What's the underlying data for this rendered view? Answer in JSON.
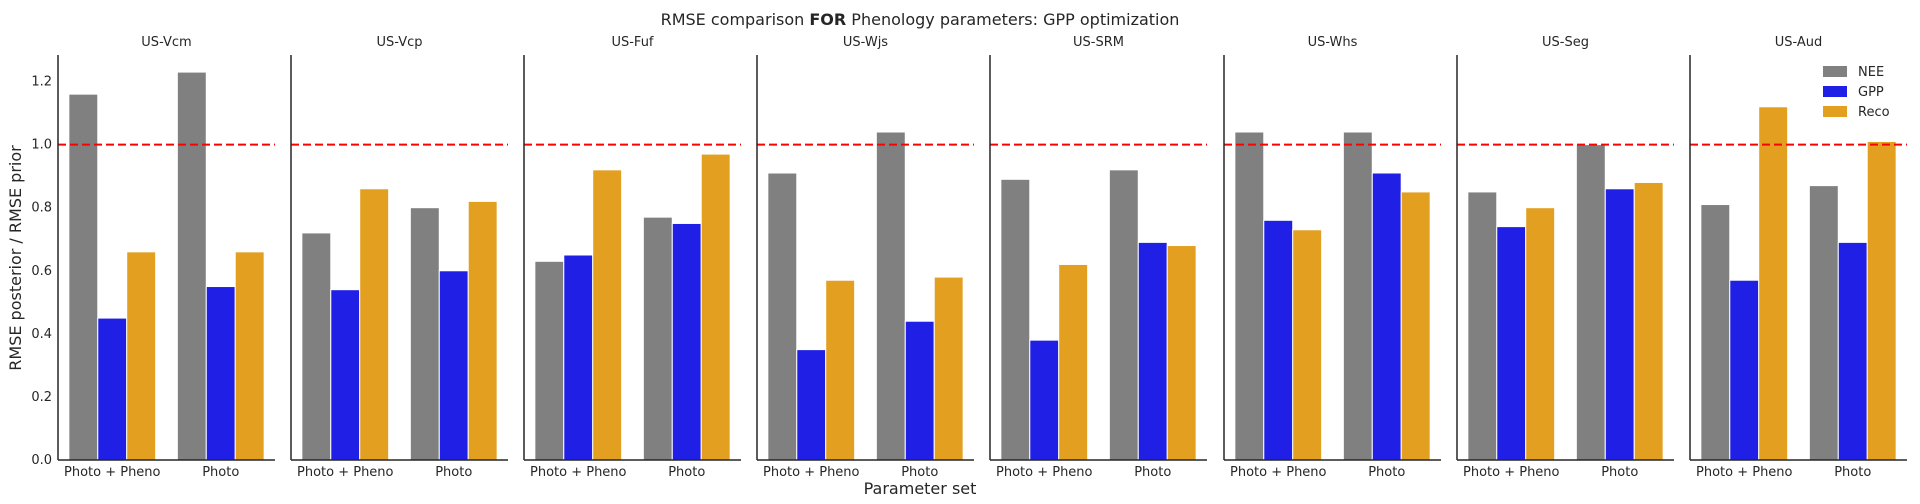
{
  "chart_data": {
    "type": "bar",
    "title_prefix": "RMSE comparison ",
    "title_bold": "FOR",
    "title_suffix": " Phenology parameters: GPP optimization",
    "xlabel": "Parameter set",
    "ylabel": "RMSE posterior / RMSE prior",
    "ylim": [
      0,
      1.3
    ],
    "yticks": [
      "0.0",
      "0.2",
      "0.4",
      "0.6",
      "0.8",
      "1.0",
      "1.2"
    ],
    "reference_line": {
      "value": 1.0,
      "color": "#ff0000",
      "style": "dashed"
    },
    "categories": [
      "Photo + Pheno",
      "Photo"
    ],
    "legend": {
      "placement": "top-right",
      "entries": [
        "NEE",
        "GPP",
        "Reco"
      ]
    },
    "series_colors": {
      "NEE": "#808080",
      "GPP": "#1f1fe6",
      "Reco": "#e39f1f"
    },
    "grid": false,
    "panels": [
      {
        "title": "US-Vcm",
        "series": [
          {
            "name": "NEE",
            "values": [
              1.16,
              1.23
            ]
          },
          {
            "name": "GPP",
            "values": [
              0.45,
              0.55
            ]
          },
          {
            "name": "Reco",
            "values": [
              0.66,
              0.66
            ]
          }
        ]
      },
      {
        "title": "US-Vcp",
        "series": [
          {
            "name": "NEE",
            "values": [
              0.72,
              0.8
            ]
          },
          {
            "name": "GPP",
            "values": [
              0.54,
              0.6
            ]
          },
          {
            "name": "Reco",
            "values": [
              0.86,
              0.82
            ]
          }
        ]
      },
      {
        "title": "US-Fuf",
        "series": [
          {
            "name": "NEE",
            "values": [
              0.63,
              0.77
            ]
          },
          {
            "name": "GPP",
            "values": [
              0.65,
              0.75
            ]
          },
          {
            "name": "Reco",
            "values": [
              0.92,
              0.97
            ]
          }
        ]
      },
      {
        "title": "US-Wjs",
        "series": [
          {
            "name": "NEE",
            "values": [
              0.91,
              1.04
            ]
          },
          {
            "name": "GPP",
            "values": [
              0.35,
              0.44
            ]
          },
          {
            "name": "Reco",
            "values": [
              0.57,
              0.58
            ]
          }
        ]
      },
      {
        "title": "US-SRM",
        "series": [
          {
            "name": "NEE",
            "values": [
              0.89,
              0.92
            ]
          },
          {
            "name": "GPP",
            "values": [
              0.38,
              0.69
            ]
          },
          {
            "name": "Reco",
            "values": [
              0.62,
              0.68
            ]
          }
        ]
      },
      {
        "title": "US-Whs",
        "series": [
          {
            "name": "NEE",
            "values": [
              1.04,
              1.04
            ]
          },
          {
            "name": "GPP",
            "values": [
              0.76,
              0.91
            ]
          },
          {
            "name": "Reco",
            "values": [
              0.73,
              0.85
            ]
          }
        ]
      },
      {
        "title": "US-Seg",
        "series": [
          {
            "name": "NEE",
            "values": [
              0.85,
              1.0
            ]
          },
          {
            "name": "GPP",
            "values": [
              0.74,
              0.86
            ]
          },
          {
            "name": "Reco",
            "values": [
              0.8,
              0.88
            ]
          }
        ]
      },
      {
        "title": "US-Aud",
        "series": [
          {
            "name": "NEE",
            "values": [
              0.81,
              0.87
            ]
          },
          {
            "name": "GPP",
            "values": [
              0.57,
              0.69
            ]
          },
          {
            "name": "Reco",
            "values": [
              1.12,
              1.01
            ]
          }
        ]
      }
    ]
  }
}
